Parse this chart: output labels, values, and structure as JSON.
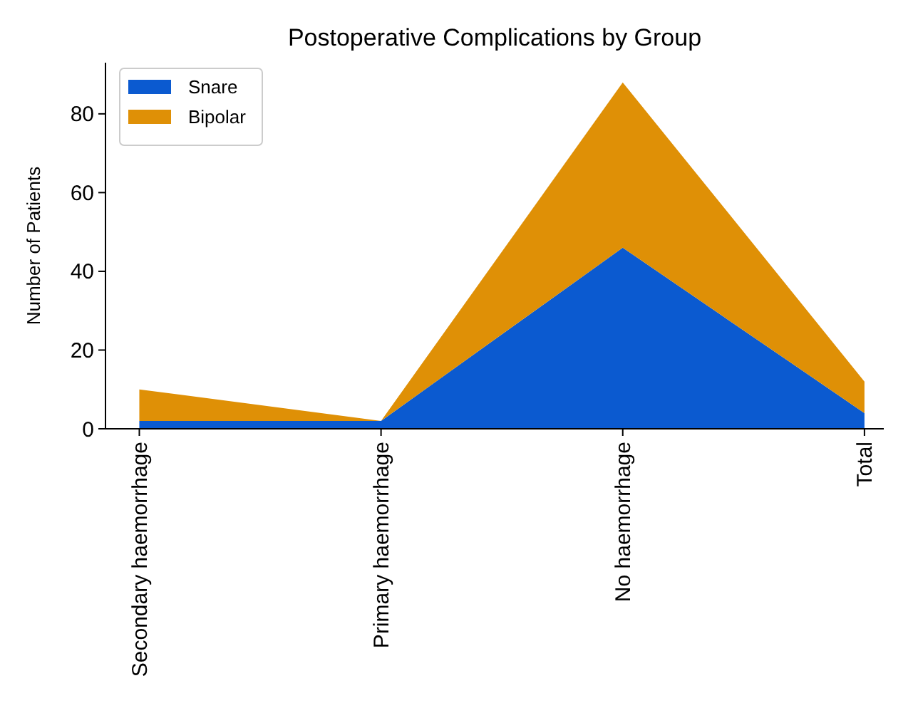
{
  "chart_data": {
    "type": "area",
    "title": "Postoperative Complications by Group",
    "ylabel": "Number of Patients",
    "categories": [
      "Secondary haemorrhage",
      "Primary haemorrhage",
      "No haemorrhage",
      "Total"
    ],
    "stacked": true,
    "series": [
      {
        "name": "Snare",
        "color": "#0b5ad0",
        "values": [
          2,
          2,
          46,
          4
        ]
      },
      {
        "name": "Bipolar",
        "color": "#df9006",
        "values": [
          8,
          0,
          42,
          8
        ]
      }
    ],
    "ylim": [
      0,
      93
    ],
    "yticks": [
      0,
      20,
      40,
      60,
      80
    ],
    "grid": false,
    "legend": "top left"
  }
}
